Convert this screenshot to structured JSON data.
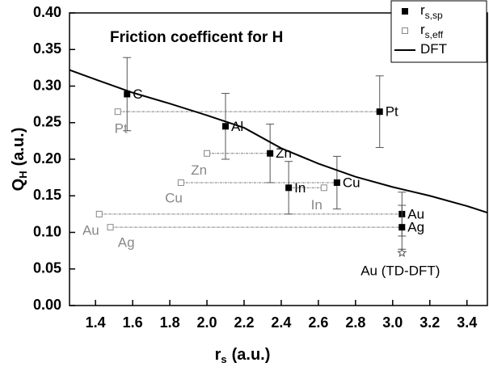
{
  "chart_data": {
    "type": "scatter",
    "title": "Friction coefficent for H",
    "x_label": {
      "main": "r",
      "sub": "s",
      "unit": "(a.u.)"
    },
    "y_label": {
      "main": "Q",
      "sub": "H",
      "unit": "(a.u.)"
    },
    "xlim": [
      1.26,
      3.51
    ],
    "ylim": [
      0,
      0.4
    ],
    "xticks": [
      1.4,
      1.6,
      1.8,
      {
        "value": 2,
        "label": "2.0"
      },
      2.2,
      2.4,
      2.6,
      2.8,
      {
        "value": 3,
        "label": "3.0"
      },
      3.2,
      3.4
    ],
    "yticks": [
      {
        "value": 0,
        "label": "0.00"
      },
      0.05,
      {
        "value": 0.1,
        "label": "0.10"
      },
      0.15,
      {
        "value": 0.2,
        "label": "0.20"
      },
      0.25,
      {
        "value": 0.3,
        "label": "0.30"
      },
      0.35,
      {
        "value": 0.4,
        "label": "0.40"
      }
    ],
    "legend": "upper right",
    "series": [
      {
        "name": "r",
        "name_sub": "s,sp",
        "marker": "filled",
        "color": "#000000",
        "labels": [
          "C",
          "Al",
          "Zn",
          "In",
          "Cu",
          "Pt",
          "Au",
          "Ag"
        ],
        "x": [
          1.57,
          2.1,
          2.34,
          2.44,
          2.7,
          2.93,
          3.05,
          3.05
        ],
        "values": [
          0.289,
          0.245,
          0.208,
          0.161,
          0.168,
          0.265,
          0.125,
          0.107
        ],
        "errors": [
          0.05,
          0.045,
          0.04,
          0.036,
          0.036,
          0.049,
          0.03,
          0.03
        ]
      },
      {
        "name": "r",
        "name_sub": "s,eff",
        "marker": "open",
        "color": "#888888",
        "labels": [
          "Pt",
          "Zn",
          "Cu",
          "In",
          "Au",
          "Ag"
        ],
        "x": [
          1.52,
          2.0,
          1.86,
          2.63,
          1.42,
          1.48
        ],
        "values": [
          0.265,
          0.208,
          0.168,
          0.161,
          0.125,
          0.107
        ]
      },
      {
        "name": "DFT",
        "marker": "line",
        "color": "#000000",
        "x": [
          1.26,
          1.4,
          1.6,
          1.8,
          2.0,
          2.2,
          2.4,
          2.6,
          2.8,
          3.0,
          3.2,
          3.4,
          3.51
        ],
        "values": [
          0.322,
          0.309,
          0.291,
          0.276,
          0.26,
          0.243,
          0.215,
          0.194,
          0.176,
          0.162,
          0.15,
          0.136,
          0.127
        ]
      }
    ],
    "annotation": {
      "text": "Au (TD-DFT)",
      "x": 3.05,
      "y": 0.072
    }
  }
}
